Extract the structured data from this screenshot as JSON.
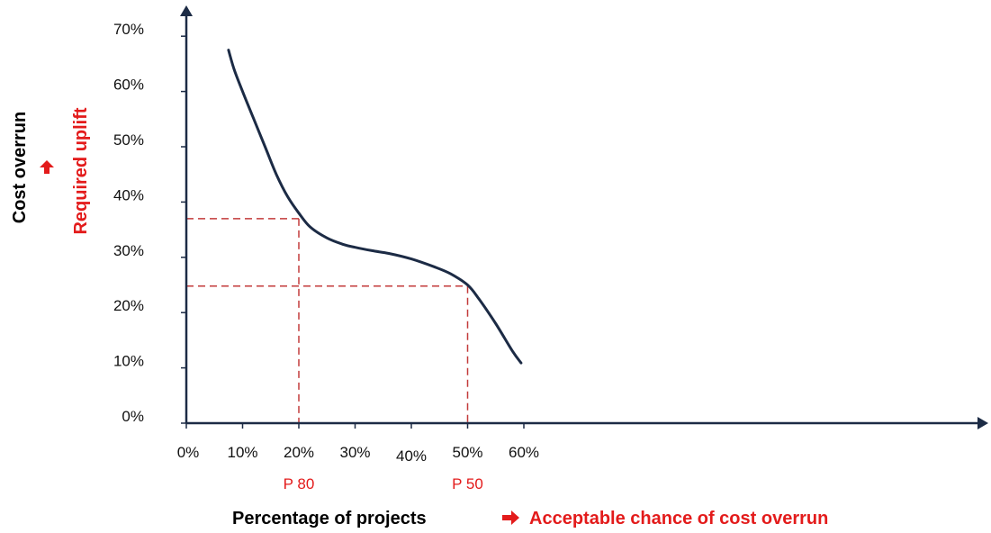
{
  "chart_data": {
    "type": "line",
    "x_ticks": [
      "0%",
      "10%",
      "20%",
      "30%",
      "40%",
      "50%",
      "60%"
    ],
    "y_ticks": [
      "0%",
      "10%",
      "20%",
      "30%",
      "40%",
      "50%",
      "60%",
      "70%"
    ],
    "xlim": [
      0,
      65
    ],
    "ylim": [
      0,
      72
    ],
    "series": [
      {
        "color": "#1c2b45",
        "x": [
          7.5,
          8.5,
          10,
          12,
          14,
          16,
          18,
          20,
          22,
          25,
          28,
          30,
          33,
          36,
          40,
          44,
          47,
          50,
          52,
          55,
          58,
          59.5
        ],
        "y": [
          67.5,
          64,
          60,
          55,
          50,
          45,
          41,
          38,
          35.5,
          33.5,
          32.3,
          31.8,
          31.2,
          30.7,
          29.7,
          28.3,
          27,
          25,
          22.5,
          18,
          13,
          10.9
        ]
      }
    ],
    "reference_lines": [
      {
        "x": 20,
        "y": 37,
        "color": "#c33b3b"
      },
      {
        "x": 50,
        "y": 24.8,
        "color": "#c33b3b"
      }
    ],
    "x_annotations": [
      {
        "x": 20,
        "text": "P 80"
      },
      {
        "x": 50,
        "text": "P 50"
      }
    ],
    "xlabel": "Percentage of projects",
    "xlabel_secondary": "Acceptable chance of cost overrun",
    "ylabel": "Cost overrun",
    "ylabel_secondary": "Required uplift",
    "grid": false,
    "accent_color": "#e31b1b",
    "axis_color": "#1c2b45"
  }
}
